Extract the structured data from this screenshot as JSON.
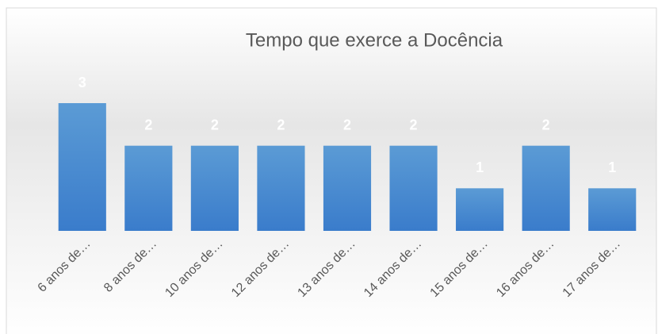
{
  "chart_data": {
    "type": "bar",
    "title": "Tempo que exerce a Docência",
    "categories": [
      "6 anos de…",
      "8 anos de…",
      "10 anos de…",
      "12 anos de…",
      "13 anos de…",
      "14 anos de…",
      "15 anos de…",
      "16 anos de…",
      "17 anos de…"
    ],
    "values": [
      3,
      2,
      2,
      2,
      2,
      2,
      1,
      2,
      1
    ],
    "color": "#5b9bd5"
  }
}
